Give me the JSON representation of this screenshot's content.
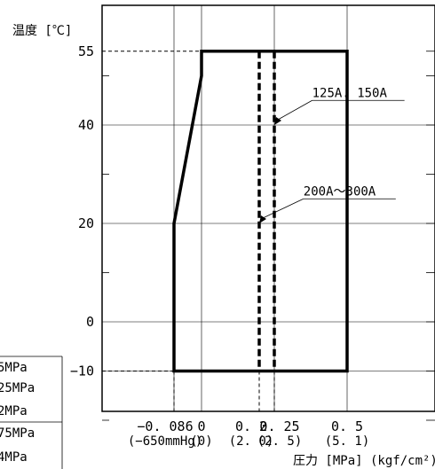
{
  "chart_data": {
    "type": "area",
    "title": "",
    "ylabel": "温度 [℃]",
    "xlabel": "圧力 [MPa] (kgf/cm²)",
    "xlim": [
      -0.2,
      0.6
    ],
    "ylim": [
      -20,
      60
    ],
    "y_ticks": [
      {
        "value": 55,
        "label": "55"
      },
      {
        "value": 40,
        "label": "40"
      },
      {
        "value": 20,
        "label": "20"
      },
      {
        "value": 0,
        "label": "0"
      },
      {
        "value": -10,
        "label": "−10"
      }
    ],
    "y_minor_ticks": [
      50,
      30,
      10,
      -20
    ],
    "x_gridlines": [
      -0.086,
      0,
      0.25,
      0.5
    ],
    "x_ticks": [
      {
        "value": -0.086,
        "label": "−0. 086",
        "sublabel": "(−650mmHg)"
      },
      {
        "value": 0,
        "label": "0",
        "sublabel": "(0)"
      },
      {
        "value": 0.2,
        "label": "0. 2",
        "sublabel": "(2. 0)"
      },
      {
        "value": 0.25,
        "label": "0. 25",
        "sublabel": "(2. 5)"
      },
      {
        "value": 0.5,
        "label": "0. 5",
        "sublabel": "(5. 1)"
      }
    ],
    "region": [
      [
        -0.086,
        -10
      ],
      [
        -0.086,
        20
      ],
      [
        0,
        50
      ],
      [
        0,
        55
      ],
      [
        0.5,
        55
      ],
      [
        0.5,
        -10
      ]
    ],
    "series": [
      {
        "name": "200A～300A",
        "x": 0.2,
        "y_range": [
          -10,
          55
        ],
        "style": "dashed",
        "label_at": [
          0.35,
          25
        ],
        "arrow_to": [
          0.2,
          20
        ]
      },
      {
        "name": "125A. 150A",
        "x": 0.25,
        "y_range": [
          -10,
          55
        ],
        "style": "dashed",
        "label_at": [
          0.38,
          45
        ],
        "arrow_to": [
          0.25,
          40
        ]
      }
    ],
    "grid": true,
    "left_fragment_labels": [
      "5MPa",
      "25MPa",
      "2MPa",
      "75MPa",
      "4MPa"
    ]
  }
}
